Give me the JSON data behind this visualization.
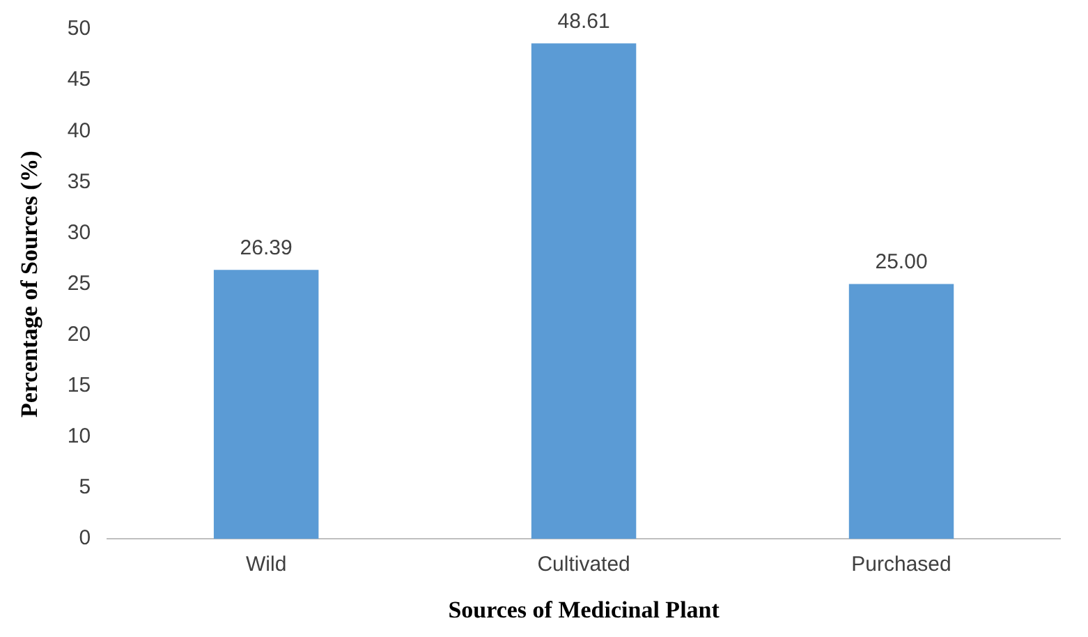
{
  "chart_data": {
    "type": "bar",
    "xlabel": "Sources of Medicinal Plant",
    "ylabel": "Percentage of Sources (%)",
    "categories": [
      "Wild",
      "Cultivated",
      "Purchased"
    ],
    "values": [
      26.39,
      48.61,
      25.0
    ],
    "value_labels": [
      "26.39",
      "48.61",
      "25.00"
    ],
    "color": "#5b9bd5",
    "ylim": [
      0,
      50
    ],
    "yticks": [
      0,
      5,
      10,
      15,
      20,
      25,
      30,
      35,
      40,
      45,
      50
    ],
    "grid": false,
    "legend": false
  }
}
